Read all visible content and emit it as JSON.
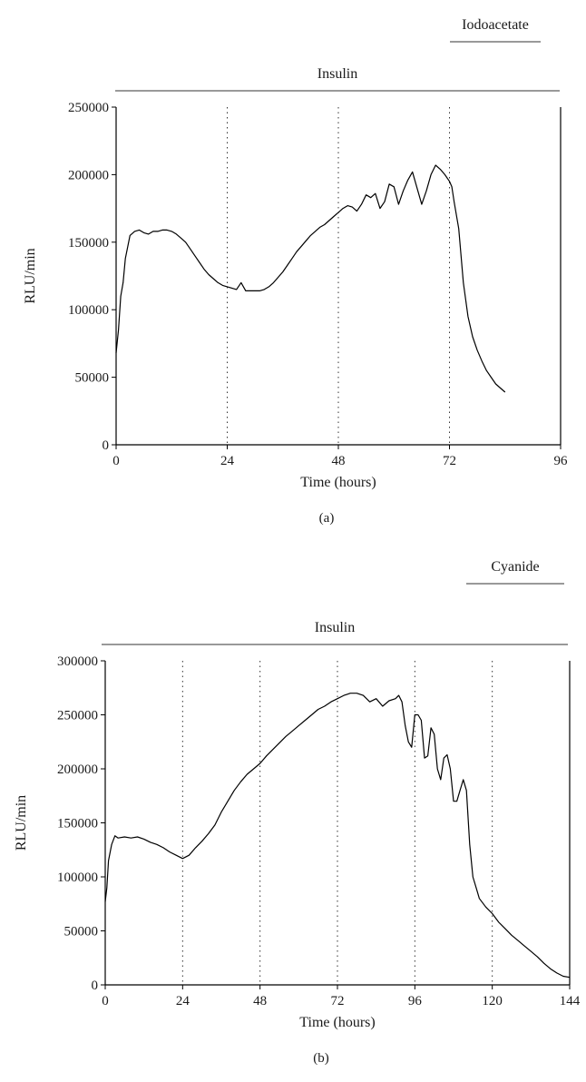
{
  "chart_data": [
    {
      "type": "line",
      "panel_label": "(a)",
      "xlabel": "Time (hours)",
      "ylabel": "RLU/min",
      "xlim": [
        0,
        96
      ],
      "ylim": [
        0,
        250000
      ],
      "xticks": [
        0,
        24,
        48,
        72,
        96
      ],
      "yticks": [
        0,
        50000,
        100000,
        150000,
        200000,
        250000
      ],
      "vlines": [
        24,
        48,
        72
      ],
      "treatments": [
        {
          "label": "Insulin",
          "start": 0,
          "end": 96
        },
        {
          "label": "Iodoacetate",
          "start": 72,
          "end": 96
        }
      ],
      "series": [
        {
          "x": [
            0,
            0.5,
            1,
            1.5,
            2,
            3,
            4,
            5,
            6,
            7,
            8,
            9,
            10,
            11,
            12,
            13,
            14,
            15,
            16,
            17,
            18,
            19,
            20,
            21,
            22,
            23,
            24,
            25,
            26,
            27,
            28,
            29,
            30,
            31,
            32,
            33,
            34,
            35,
            36,
            37,
            38,
            39,
            40,
            41,
            42,
            43,
            44,
            45,
            46,
            47,
            48,
            49,
            50,
            51,
            52,
            53,
            54,
            55,
            56,
            57,
            58,
            59,
            60,
            61,
            62,
            63,
            64,
            65,
            66,
            67,
            68,
            69,
            70,
            71,
            72,
            72.5,
            73,
            74,
            75,
            76,
            77,
            78,
            79,
            80,
            81,
            82,
            83,
            84
          ],
          "y": [
            68000,
            85000,
            110000,
            120000,
            138000,
            155000,
            158000,
            159000,
            157000,
            156000,
            158000,
            158000,
            159000,
            159000,
            158000,
            156000,
            153000,
            150000,
            145000,
            140000,
            135000,
            130000,
            126000,
            123000,
            120000,
            118000,
            117000,
            116000,
            115000,
            120000,
            114000,
            114000,
            114000,
            114000,
            115000,
            117000,
            120000,
            124000,
            128000,
            133000,
            138000,
            143000,
            147000,
            151000,
            155000,
            158000,
            161000,
            163000,
            166000,
            169000,
            172000,
            175000,
            177000,
            176000,
            173000,
            178000,
            185000,
            183000,
            186000,
            175000,
            180000,
            193000,
            191000,
            178000,
            188000,
            196000,
            202000,
            190000,
            178000,
            188000,
            200000,
            207000,
            204000,
            200000,
            195000,
            191000,
            180000,
            160000,
            120000,
            95000,
            80000,
            70000,
            62000,
            55000,
            50000,
            45000,
            42000,
            39000
          ]
        }
      ]
    },
    {
      "type": "line",
      "panel_label": "(b)",
      "xlabel": "Time (hours)",
      "ylabel": "RLU/min",
      "xlim": [
        0,
        144
      ],
      "ylim": [
        0,
        300000
      ],
      "xticks": [
        0,
        24,
        48,
        72,
        96,
        120,
        144
      ],
      "yticks": [
        0,
        50000,
        100000,
        150000,
        200000,
        250000,
        300000
      ],
      "vlines": [
        24,
        48,
        72,
        96,
        120
      ],
      "treatments": [
        {
          "label": "Insulin",
          "start": 0,
          "end": 144
        },
        {
          "label": "Cyanide",
          "start": 120,
          "end": 144
        }
      ],
      "series": [
        {
          "x": [
            0,
            0.5,
            1,
            2,
            3,
            4,
            6,
            8,
            10,
            12,
            14,
            16,
            18,
            20,
            22,
            24,
            26,
            28,
            30,
            32,
            34,
            36,
            38,
            40,
            42,
            44,
            46,
            48,
            50,
            52,
            54,
            56,
            58,
            60,
            62,
            64,
            66,
            68,
            70,
            72,
            74,
            76,
            78,
            80,
            82,
            84,
            86,
            88,
            90,
            91,
            92,
            93,
            94,
            95,
            96,
            97,
            98,
            99,
            100,
            101,
            102,
            103,
            104,
            105,
            106,
            107,
            108,
            109,
            110,
            111,
            112,
            113,
            114,
            115,
            116,
            118,
            120,
            122,
            124,
            126,
            128,
            130,
            132,
            134,
            136,
            138,
            140,
            142,
            144
          ],
          "y": [
            77000,
            90000,
            115000,
            130000,
            138000,
            136000,
            137000,
            136000,
            137000,
            135000,
            132000,
            130000,
            127000,
            123000,
            120000,
            117000,
            120000,
            127000,
            133000,
            140000,
            148000,
            160000,
            170000,
            180000,
            188000,
            195000,
            200000,
            205000,
            212000,
            218000,
            224000,
            230000,
            235000,
            240000,
            245000,
            250000,
            255000,
            258000,
            262000,
            265000,
            268000,
            270000,
            270000,
            268000,
            262000,
            265000,
            258000,
            263000,
            265000,
            268000,
            262000,
            240000,
            225000,
            220000,
            250000,
            250000,
            245000,
            210000,
            212000,
            238000,
            232000,
            200000,
            190000,
            210000,
            213000,
            200000,
            170000,
            170000,
            180000,
            190000,
            180000,
            130000,
            100000,
            90000,
            80000,
            72000,
            66000,
            58000,
            52000,
            46000,
            41000,
            36000,
            31000,
            26000,
            20000,
            15000,
            11000,
            8000,
            7000
          ]
        }
      ]
    }
  ]
}
